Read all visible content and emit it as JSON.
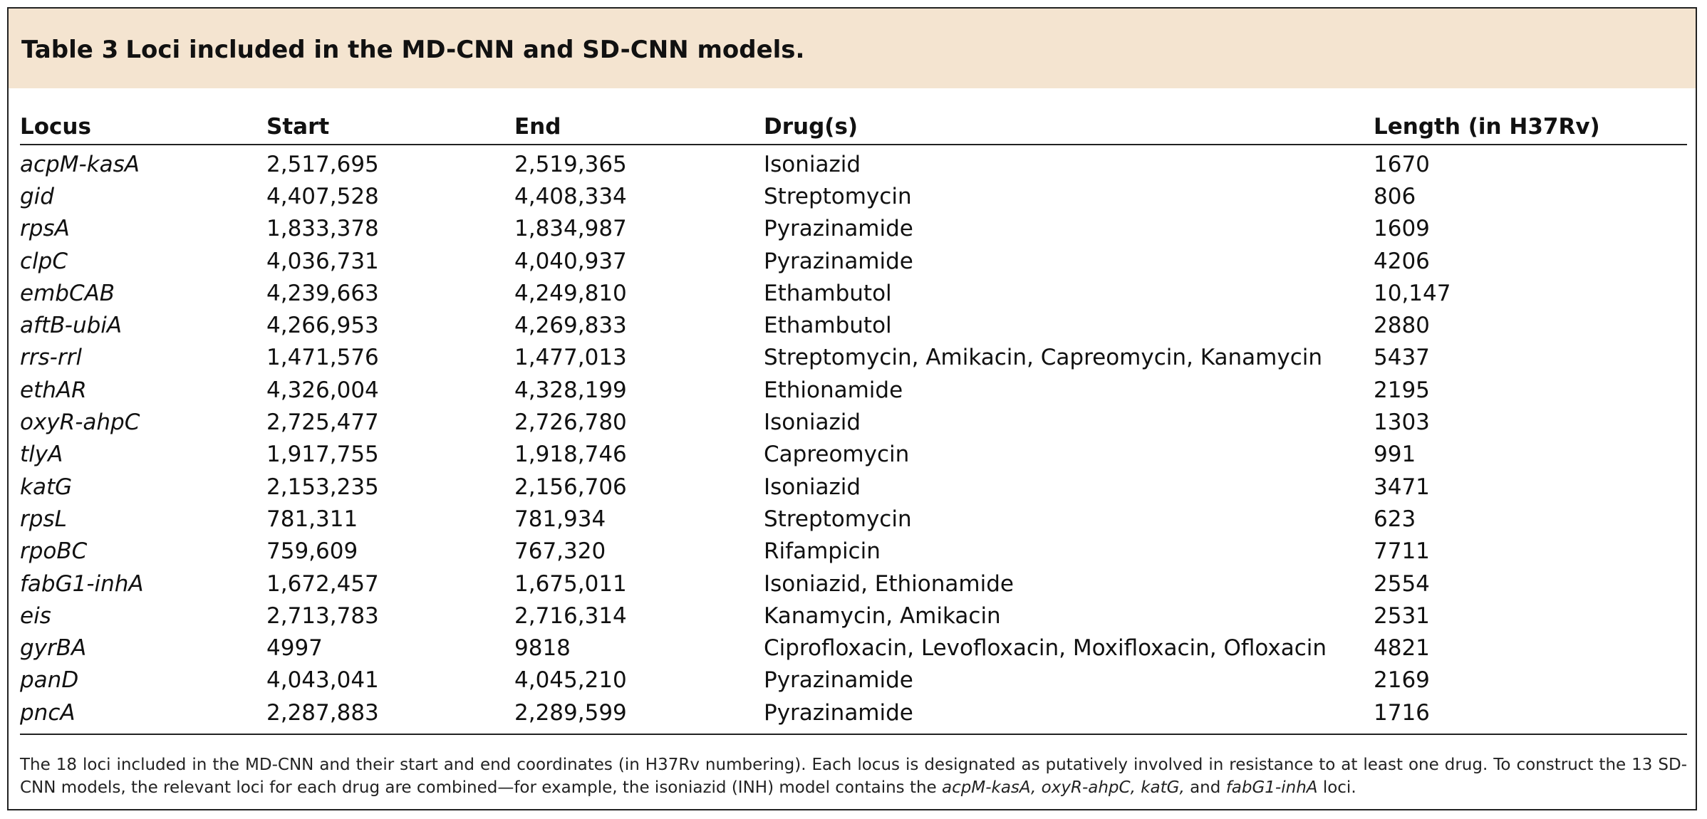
{
  "title": {
    "number": "Table 3",
    "text": "Loci included in the MD-CNN and SD-CNN models."
  },
  "columns": [
    "Locus",
    "Start",
    "End",
    "Drug(s)",
    "Length (in H37Rv)"
  ],
  "rows": [
    {
      "locus": "acpM-kasA",
      "start": "2,517,695",
      "end": "2,519,365",
      "drugs": "Isoniazid",
      "length": "1670"
    },
    {
      "locus": "gid",
      "start": "4,407,528",
      "end": "4,408,334",
      "drugs": "Streptomycin",
      "length": "806"
    },
    {
      "locus": "rpsA",
      "start": "1,833,378",
      "end": "1,834,987",
      "drugs": "Pyrazinamide",
      "length": "1609"
    },
    {
      "locus": "clpC",
      "start": "4,036,731",
      "end": "4,040,937",
      "drugs": "Pyrazinamide",
      "length": "4206"
    },
    {
      "locus": "embCAB",
      "start": "4,239,663",
      "end": "4,249,810",
      "drugs": "Ethambutol",
      "length": "10,147"
    },
    {
      "locus": "aftB-ubiA",
      "start": "4,266,953",
      "end": "4,269,833",
      "drugs": "Ethambutol",
      "length": "2880"
    },
    {
      "locus": "rrs-rrl",
      "start": "1,471,576",
      "end": "1,477,013",
      "drugs": "Streptomycin, Amikacin, Capreomycin, Kanamycin",
      "length": "5437"
    },
    {
      "locus": "ethAR",
      "start": "4,326,004",
      "end": "4,328,199",
      "drugs": "Ethionamide",
      "length": "2195"
    },
    {
      "locus": "oxyR-ahpC",
      "start": "2,725,477",
      "end": "2,726,780",
      "drugs": "Isoniazid",
      "length": "1303"
    },
    {
      "locus": "tlyA",
      "start": "1,917,755",
      "end": "1,918,746",
      "drugs": "Capreomycin",
      "length": "991"
    },
    {
      "locus": "katG",
      "start": "2,153,235",
      "end": "2,156,706",
      "drugs": "Isoniazid",
      "length": "3471"
    },
    {
      "locus": "rpsL",
      "start": "781,311",
      "end": "781,934",
      "drugs": "Streptomycin",
      "length": "623"
    },
    {
      "locus": "rpoBC",
      "start": "759,609",
      "end": "767,320",
      "drugs": "Rifampicin",
      "length": "7711"
    },
    {
      "locus": "fabG1-inhA",
      "start": "1,672,457",
      "end": "1,675,011",
      "drugs": "Isoniazid, Ethionamide",
      "length": "2554"
    },
    {
      "locus": "eis",
      "start": "2,713,783",
      "end": "2,716,314",
      "drugs": "Kanamycin, Amikacin",
      "length": "2531"
    },
    {
      "locus": "gyrBA",
      "start": "4997",
      "end": "9818",
      "drugs": "Ciprofloxacin, Levofloxacin, Moxifloxacin, Ofloxacin",
      "length": "4821"
    },
    {
      "locus": "panD",
      "start": "4,043,041",
      "end": "4,045,210",
      "drugs": "Pyrazinamide",
      "length": "2169"
    },
    {
      "locus": "pncA",
      "start": "2,287,883",
      "end": "2,289,599",
      "drugs": "Pyrazinamide",
      "length": "1716"
    }
  ],
  "footnote": {
    "text_before": "The 18 loci included in the MD-CNN and their start and end coordinates (in H37Rv numbering). Each locus is designated as putatively involved in resistance to at least one drug. To construct the 13 SD-CNN models, the relevant loci for each drug are combined—for example, the isoniazid (INH) model contains the ",
    "italic_loci": "acpM-kasA, oxyR-ahpC, katG,",
    "text_and": " and ",
    "italic_last": "fabG1-inhA",
    "text_after": " loci."
  },
  "colors": {
    "title_band": "#f4e4d0",
    "rules": "#222222",
    "text": "#111111"
  }
}
